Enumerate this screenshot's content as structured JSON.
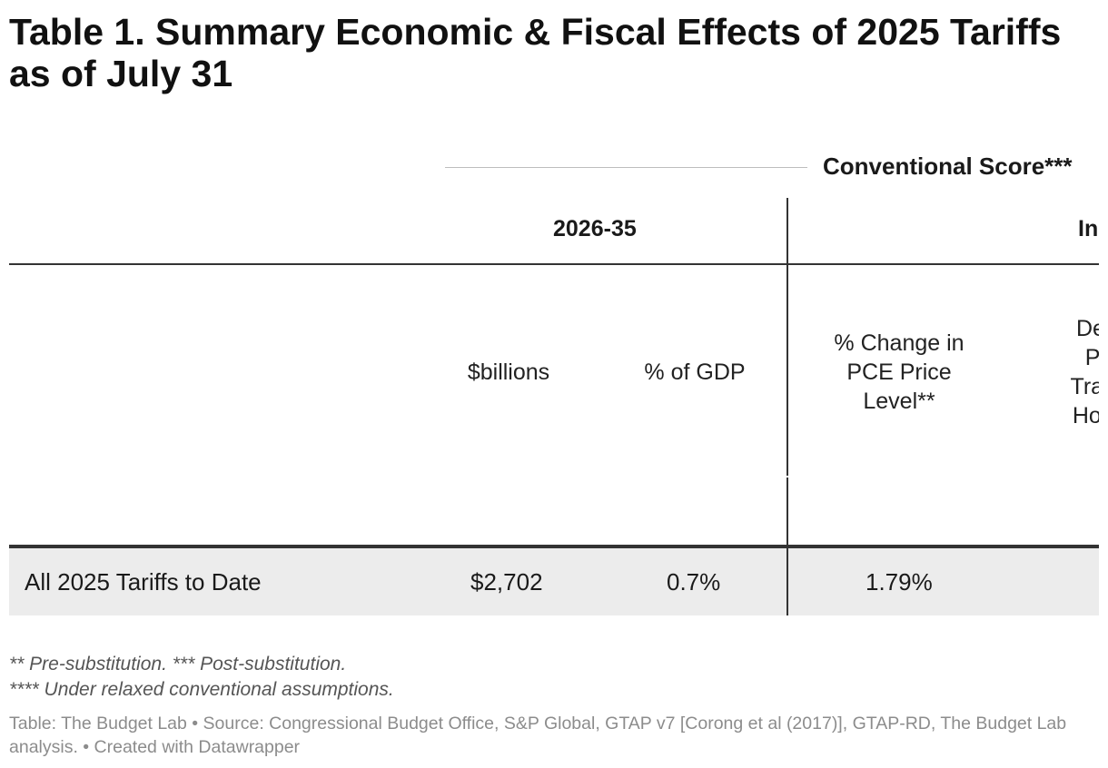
{
  "title": "Table 1. Summary Economic & Fiscal Effects of 2025 Tariffs as of July 31",
  "table": {
    "spanner": "Conventional Score***",
    "groups": {
      "fiscal": "2026-35",
      "impact": "In"
    },
    "columns": {
      "billions": "$billions",
      "pct_gdp": "% of GDP",
      "pce": [
        "% Change in",
        "PCE Price",
        "Level**"
      ],
      "decline": [
        "Decl",
        "Po",
        "Trans",
        "Hous"
      ]
    },
    "rows": [
      {
        "label": "All 2025 Tariffs to Date",
        "billions": "$2,702",
        "pct_gdp": "0.7%",
        "pce": "1.79%"
      }
    ]
  },
  "notes": [
    "** Pre-substitution. *** Post-substitution.",
    "**** Under relaxed conventional assumptions."
  ],
  "source": "Table: The Budget Lab • Source: Congressional Budget Office, S&P Global, GTAP v7 [Corong et al (2017)], GTAP-RD, The Budget Lab analysis. • Created with Datawrapper"
}
